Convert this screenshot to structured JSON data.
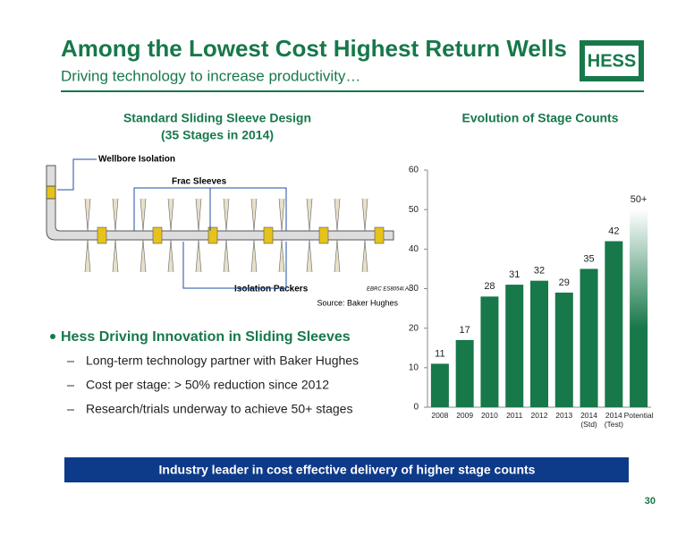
{
  "header": {
    "title": "Among the Lowest Cost Highest Return Wells",
    "subtitle": "Driving technology to increase productivity…",
    "logo": "HESS"
  },
  "diagram": {
    "title": "Standard Sliding Sleeve Design",
    "subtitle": "(35 Stages in 2014)",
    "labels": {
      "wellbore": "Wellbore Isolation",
      "frac": "Frac Sleeves",
      "packers": "Isolation Packers",
      "file": "EBRC ES8054I.AI"
    },
    "source": "Source: Baker Hughes"
  },
  "bullets": {
    "main": "Hess Driving Innovation in Sliding Sleeves",
    "items": [
      "Long-term technology partner with Baker Hughes",
      "Cost per stage: > 50% reduction since 2012",
      "Research/trials underway to achieve 50+ stages"
    ]
  },
  "chart_data": {
    "type": "bar",
    "title": "Evolution of Stage Counts",
    "categories": [
      "2008",
      "2009",
      "2010",
      "2011",
      "2012",
      "2013",
      "2014 (Std)",
      "2014 (Test)",
      "Potential"
    ],
    "values": [
      11,
      17,
      28,
      31,
      32,
      29,
      35,
      42,
      50
    ],
    "value_labels": [
      "11",
      "17",
      "28",
      "31",
      "32",
      "29",
      "35",
      "42",
      "50+"
    ],
    "color": "#17784a",
    "ylim": [
      0,
      60
    ],
    "yticks": [
      0,
      10,
      20,
      30,
      40,
      50,
      60
    ]
  },
  "banner": "Industry leader in cost effective delivery of higher stage counts",
  "page_number": "30"
}
